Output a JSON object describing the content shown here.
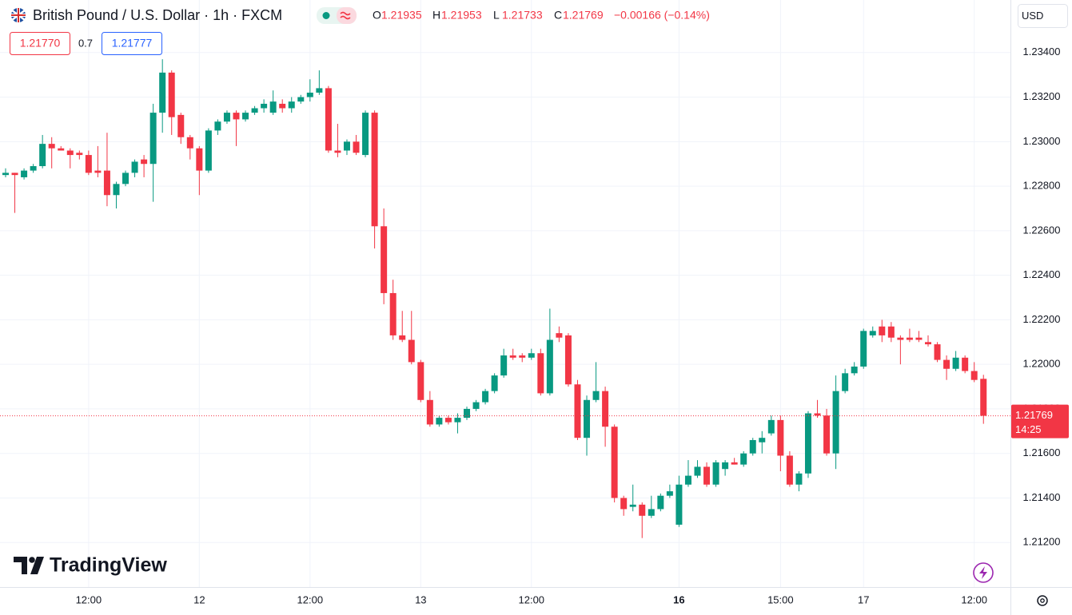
{
  "header": {
    "title": "British Pound / U.S. Dollar · 1h · FXCM",
    "ohlc": [
      {
        "label": "O",
        "value": "1.21935"
      },
      {
        "label": "H",
        "value": "1.21953"
      },
      {
        "label": "L",
        "value": "1.21733"
      },
      {
        "label": "C",
        "value": "1.21769"
      }
    ],
    "change": "−0.00166 (−0.14%)",
    "bid": "1.21770",
    "spread": "0.7",
    "ask": "1.21777",
    "currency": "USD",
    "countdown": "14:25",
    "logo": "TradingView"
  },
  "chart_data": {
    "type": "candlestick",
    "up_color": "#089981",
    "down_color": "#f23645",
    "grid": true,
    "categories": [
      null,
      null,
      null,
      null,
      null,
      null,
      null,
      null,
      null,
      "12:00",
      null,
      null,
      null,
      null,
      null,
      null,
      null,
      null,
      null,
      null,
      null,
      "12",
      null,
      null,
      null,
      null,
      null,
      null,
      null,
      null,
      null,
      null,
      null,
      "12:00",
      null,
      null,
      null,
      null,
      null,
      null,
      null,
      null,
      null,
      null,
      null,
      "13",
      null,
      null,
      null,
      null,
      null,
      null,
      null,
      null,
      null,
      null,
      null,
      "12:00",
      null,
      null,
      null,
      null,
      null,
      null,
      null,
      null,
      null,
      null,
      null,
      null,
      null,
      null,
      null,
      "16",
      null,
      null,
      null,
      null,
      null,
      null,
      null,
      null,
      null,
      null,
      "15:00",
      null,
      null,
      null,
      null,
      null,
      null,
      null,
      null,
      "17",
      null,
      null,
      null,
      null,
      null,
      null,
      null,
      null,
      null,
      null,
      null,
      "12:00",
      null
    ],
    "open": [
      1.2285,
      1.2286,
      1.2284,
      1.2287,
      1.2289,
      1.2299,
      1.2297,
      1.2296,
      1.2295,
      1.2294,
      1.2287,
      1.2287,
      1.2276,
      1.2281,
      1.2286,
      1.2292,
      1.229,
      1.2313,
      1.2331,
      1.2312,
      1.2302,
      1.2297,
      1.2287,
      1.2305,
      1.2309,
      1.2313,
      1.231,
      1.2313,
      1.2315,
      1.2313,
      1.2317,
      1.2315,
      1.2318,
      1.232,
      1.2322,
      1.2324,
      1.2296,
      1.2296,
      1.23,
      1.2294,
      1.2313,
      1.2262,
      1.2232,
      1.2213,
      1.2211,
      1.2201,
      1.2184,
      1.2173,
      1.2176,
      1.2174,
      1.2176,
      1.218,
      1.2183,
      1.2188,
      1.2195,
      1.2204,
      1.2204,
      1.2203,
      1.2205,
      1.2187,
      1.2214,
      1.2213,
      1.2191,
      1.2167,
      1.2184,
      1.2188,
      1.2172,
      1.214,
      1.2136,
      1.2137,
      1.2132,
      1.2135,
      1.2141,
      1.2128,
      1.2146,
      1.215,
      1.2154,
      1.2146,
      1.2153,
      1.2156,
      1.2155,
      1.216,
      1.2165,
      1.2169,
      1.2175,
      1.2159,
      1.2146,
      1.2151,
      1.2178,
      1.2177,
      1.216,
      1.2188,
      1.2196,
      1.2199,
      1.2213,
      1.2217,
      1.2217,
      1.2212,
      1.2212,
      1.2212,
      1.221,
      1.2209,
      1.2202,
      1.2198,
      1.2203,
      1.2197,
      1.21935
    ],
    "high": [
      1.2288,
      1.2286,
      1.2288,
      1.229,
      1.2303,
      1.2302,
      1.2298,
      1.2297,
      1.2296,
      1.2296,
      1.2298,
      1.2304,
      1.2282,
      1.2287,
      1.2292,
      1.2294,
      1.2317,
      1.2337,
      1.2332,
      1.2313,
      1.2303,
      1.2298,
      1.2306,
      1.231,
      1.2314,
      1.2314,
      1.2314,
      1.2316,
      1.2319,
      1.2323,
      1.2319,
      1.232,
      1.2321,
      1.2328,
      1.2332,
      1.2325,
      1.2308,
      1.2301,
      1.2303,
      1.2314,
      1.2314,
      1.227,
      1.2238,
      1.2224,
      1.2224,
      1.2202,
      1.2188,
      1.2177,
      1.2177,
      1.2178,
      1.2181,
      1.2184,
      1.2189,
      1.2196,
      1.2207,
      1.2207,
      1.2205,
      1.2207,
      1.2207,
      1.2225,
      1.2217,
      1.2214,
      1.2193,
      1.2186,
      1.2201,
      1.219,
      1.2173,
      1.2141,
      1.2146,
      1.2138,
      1.2141,
      1.2142,
      1.2146,
      1.215,
      1.2157,
      1.2157,
      1.2156,
      1.2157,
      1.2157,
      1.2158,
      1.2161,
      1.2167,
      1.217,
      1.2177,
      1.2177,
      1.2161,
      1.2152,
      1.2179,
      1.2184,
      1.218,
      1.2195,
      1.2198,
      1.2201,
      1.2216,
      1.2217,
      1.222,
      1.2219,
      1.2213,
      1.2216,
      1.2215,
      1.2213,
      1.221,
      1.2204,
      1.2206,
      1.2204,
      1.2201,
      1.21953
    ],
    "low": [
      1.2284,
      1.2268,
      1.2283,
      1.2286,
      1.2288,
      1.2288,
      1.2296,
      1.2288,
      1.2292,
      1.2285,
      1.2284,
      1.2271,
      1.227,
      1.228,
      1.2284,
      1.2284,
      1.2273,
      1.2304,
      1.2303,
      1.2299,
      1.2292,
      1.2276,
      1.2286,
      1.2303,
      1.2308,
      1.2298,
      1.2309,
      1.2312,
      1.2313,
      1.2312,
      1.2313,
      1.2313,
      1.2317,
      1.2318,
      1.2321,
      1.2295,
      1.2293,
      1.2294,
      1.2294,
      1.2293,
      1.2252,
      1.2227,
      1.2211,
      1.221,
      1.22,
      1.2183,
      1.2172,
      1.2172,
      1.2173,
      1.2169,
      1.2175,
      1.2179,
      1.2182,
      1.2187,
      1.2194,
      1.2202,
      1.2201,
      1.2202,
      1.2186,
      1.2186,
      1.221,
      1.219,
      1.2166,
      1.2159,
      1.2183,
      1.2163,
      1.2138,
      1.2132,
      1.2134,
      1.2122,
      1.2131,
      1.2134,
      1.214,
      1.2127,
      1.2145,
      1.2149,
      1.2145,
      1.2145,
      1.215,
      1.2155,
      1.2154,
      1.2159,
      1.216,
      1.2168,
      1.2152,
      1.2145,
      1.2143,
      1.2149,
      1.2176,
      1.2159,
      1.2153,
      1.2187,
      1.2195,
      1.2198,
      1.2212,
      1.221,
      1.221,
      1.22,
      1.221,
      1.221,
      1.2208,
      1.2201,
      1.2193,
      1.2197,
      1.2196,
      1.2192,
      1.21733
    ],
    "close": [
      1.2286,
      1.2285,
      1.2287,
      1.2289,
      1.2299,
      1.2297,
      1.2296,
      1.2294,
      1.2294,
      1.2286,
      1.2286,
      1.2276,
      1.2281,
      1.2286,
      1.2291,
      1.229,
      1.2313,
      1.2331,
      1.2311,
      1.2302,
      1.2297,
      1.2287,
      1.2305,
      1.2309,
      1.2313,
      1.231,
      1.2313,
      1.2315,
      1.2317,
      1.2318,
      1.2315,
      1.2318,
      1.232,
      1.2322,
      1.2324,
      1.2296,
      1.2295,
      1.23,
      1.2295,
      1.2313,
      1.2262,
      1.2232,
      1.2213,
      1.2211,
      1.2201,
      1.2184,
      1.2173,
      1.2176,
      1.2174,
      1.2176,
      1.218,
      1.2183,
      1.2188,
      1.2195,
      1.2204,
      1.2203,
      1.2203,
      1.2205,
      1.2187,
      1.2211,
      1.2212,
      1.2191,
      1.2167,
      1.2184,
      1.2188,
      1.2172,
      1.214,
      1.2135,
      1.2137,
      1.2132,
      1.2135,
      1.2141,
      1.2143,
      1.2146,
      1.215,
      1.2154,
      1.2146,
      1.2156,
      1.2156,
      1.2155,
      1.216,
      1.2166,
      1.2167,
      1.2175,
      1.2159,
      1.2146,
      1.2151,
      1.2178,
      1.2177,
      1.216,
      1.2188,
      1.2196,
      1.2199,
      1.2215,
      1.2215,
      1.2213,
      1.2212,
      1.2211,
      1.2211,
      1.2211,
      1.2209,
      1.2202,
      1.2198,
      1.2203,
      1.2197,
      1.2193,
      1.21769
    ],
    "ylim": [
      1.21,
      1.23636
    ],
    "yticks": [
      {
        "value": 1.234,
        "label": "1.23400"
      },
      {
        "value": 1.232,
        "label": "1.23200"
      },
      {
        "value": 1.23,
        "label": "1.23000"
      },
      {
        "value": 1.228,
        "label": "1.22800"
      },
      {
        "value": 1.226,
        "label": "1.22600"
      },
      {
        "value": 1.224,
        "label": "1.22400"
      },
      {
        "value": 1.222,
        "label": "1.22200"
      },
      {
        "value": 1.22,
        "label": "1.22000"
      },
      {
        "value": 1.218,
        "label": "1.21800"
      },
      {
        "value": 1.216,
        "label": "1.21600"
      },
      {
        "value": 1.214,
        "label": "1.21400"
      },
      {
        "value": 1.212,
        "label": "1.21200"
      }
    ]
  }
}
